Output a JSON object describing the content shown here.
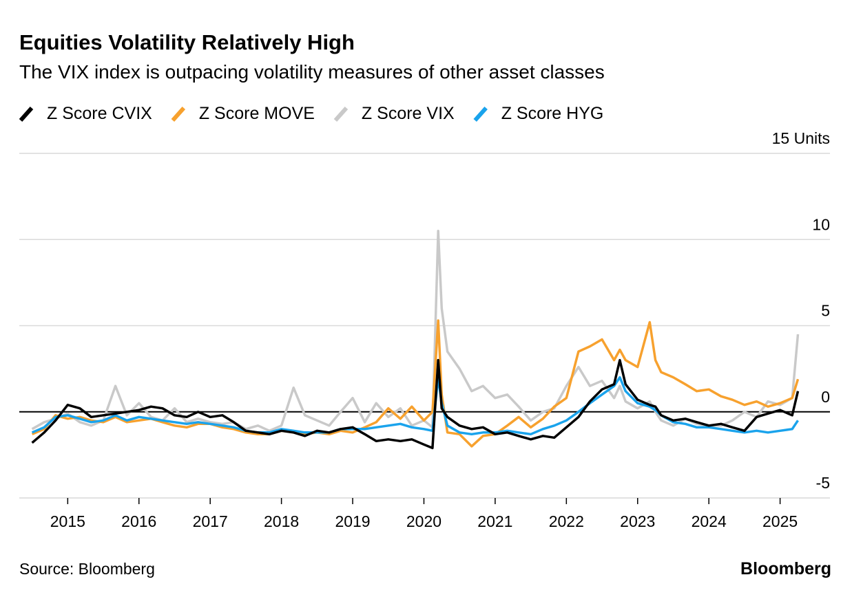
{
  "chart_data": {
    "type": "line",
    "title": "Equities Volatility Relatively High",
    "subtitle": "The VIX index is outpacing volatility measures of other asset classes",
    "source": "Source: Bloomberg",
    "brand": "Bloomberg",
    "x": [
      2014.5,
      2014.67,
      2014.83,
      2015.0,
      2015.17,
      2015.33,
      2015.5,
      2015.67,
      2015.83,
      2016.0,
      2016.17,
      2016.33,
      2016.5,
      2016.67,
      2016.83,
      2017.0,
      2017.17,
      2017.33,
      2017.5,
      2017.67,
      2017.83,
      2018.0,
      2018.17,
      2018.33,
      2018.5,
      2018.67,
      2018.83,
      2019.0,
      2019.17,
      2019.33,
      2019.5,
      2019.67,
      2019.83,
      2020.0,
      2020.12,
      2020.2,
      2020.25,
      2020.33,
      2020.5,
      2020.67,
      2020.83,
      2021.0,
      2021.17,
      2021.33,
      2021.5,
      2021.67,
      2021.83,
      2022.0,
      2022.17,
      2022.33,
      2022.5,
      2022.67,
      2022.75,
      2022.83,
      2023.0,
      2023.17,
      2023.25,
      2023.33,
      2023.5,
      2023.67,
      2023.83,
      2024.0,
      2024.17,
      2024.33,
      2024.5,
      2024.67,
      2024.83,
      2025.0,
      2025.17,
      2025.25
    ],
    "series": [
      {
        "name": "Z Score CVIX",
        "color": "#000000",
        "values": [
          -1.8,
          -1.2,
          -0.5,
          0.4,
          0.2,
          -0.3,
          -0.2,
          -0.1,
          0.0,
          0.1,
          0.3,
          0.2,
          -0.2,
          -0.3,
          0.0,
          -0.3,
          -0.2,
          -0.6,
          -1.1,
          -1.2,
          -1.3,
          -1.1,
          -1.2,
          -1.4,
          -1.1,
          -1.2,
          -1.0,
          -0.9,
          -1.3,
          -1.7,
          -1.6,
          -1.7,
          -1.6,
          -1.9,
          -2.1,
          3.0,
          0.2,
          -0.3,
          -0.8,
          -1.0,
          -0.9,
          -1.3,
          -1.2,
          -1.4,
          -1.6,
          -1.4,
          -1.5,
          -0.9,
          -0.3,
          0.6,
          1.3,
          1.6,
          3.0,
          1.6,
          0.7,
          0.4,
          0.3,
          -0.2,
          -0.5,
          -0.4,
          -0.6,
          -0.8,
          -0.7,
          -0.9,
          -1.1,
          -0.3,
          -0.1,
          0.1,
          -0.2,
          1.2
        ]
      },
      {
        "name": "Z Score MOVE",
        "color": "#f7a12e",
        "values": [
          -1.3,
          -1.0,
          -0.2,
          -0.4,
          -0.3,
          -0.5,
          -0.6,
          -0.3,
          -0.6,
          -0.5,
          -0.4,
          -0.6,
          -0.8,
          -0.9,
          -0.7,
          -0.7,
          -0.9,
          -1.0,
          -1.2,
          -1.3,
          -1.3,
          -1.1,
          -1.2,
          -1.3,
          -1.2,
          -1.3,
          -1.1,
          -1.2,
          -0.9,
          -0.6,
          0.2,
          -0.4,
          0.3,
          -0.5,
          0.0,
          5.3,
          1.0,
          -1.2,
          -1.3,
          -2.0,
          -1.4,
          -1.3,
          -0.8,
          -0.3,
          -0.9,
          -0.4,
          0.3,
          0.8,
          3.5,
          3.8,
          4.2,
          3.0,
          3.6,
          3.0,
          2.6,
          5.2,
          3.0,
          2.3,
          2.0,
          1.6,
          1.2,
          1.3,
          0.9,
          0.7,
          0.4,
          0.6,
          0.3,
          0.5,
          0.8,
          1.9
        ]
      },
      {
        "name": "Z Score VIX",
        "color": "#c9c9c9",
        "values": [
          -1.0,
          -0.6,
          -0.4,
          -0.1,
          -0.6,
          -0.8,
          -0.5,
          1.5,
          -0.2,
          0.5,
          -0.3,
          -0.5,
          0.2,
          -0.6,
          -0.4,
          -0.6,
          -0.7,
          -0.6,
          -1.0,
          -0.8,
          -1.1,
          -0.8,
          1.4,
          -0.2,
          -0.5,
          -0.8,
          0.0,
          0.8,
          -0.6,
          0.5,
          -0.3,
          0.2,
          -0.8,
          -0.5,
          -0.9,
          10.5,
          6.0,
          3.5,
          2.5,
          1.2,
          1.5,
          0.8,
          1.0,
          0.3,
          -0.5,
          0.0,
          0.2,
          1.5,
          2.6,
          1.5,
          1.8,
          0.8,
          1.5,
          0.6,
          0.2,
          0.6,
          0.0,
          -0.5,
          -0.8,
          -0.4,
          -0.7,
          -0.8,
          -0.8,
          -0.5,
          0.0,
          -0.3,
          0.6,
          0.4,
          0.8,
          4.5
        ]
      },
      {
        "name": "Z Score HYG",
        "color": "#1aa3ec",
        "values": [
          -1.2,
          -0.9,
          -0.3,
          -0.2,
          -0.4,
          -0.6,
          -0.5,
          -0.2,
          -0.5,
          -0.3,
          -0.4,
          -0.5,
          -0.6,
          -0.7,
          -0.6,
          -0.7,
          -0.8,
          -0.9,
          -1.1,
          -1.2,
          -1.2,
          -1.0,
          -1.1,
          -1.2,
          -1.2,
          -1.2,
          -1.0,
          -1.0,
          -1.0,
          -0.9,
          -0.8,
          -0.7,
          -0.9,
          -1.0,
          -1.1,
          2.0,
          0.5,
          -0.8,
          -1.2,
          -1.3,
          -1.2,
          -1.2,
          -1.1,
          -1.2,
          -1.3,
          -1.0,
          -0.8,
          -0.5,
          0.0,
          0.5,
          1.0,
          1.5,
          2.0,
          1.2,
          0.5,
          0.3,
          0.1,
          -0.2,
          -0.6,
          -0.7,
          -0.9,
          -0.9,
          -1.0,
          -1.1,
          -1.2,
          -1.1,
          -1.2,
          -1.1,
          -1.0,
          -0.5
        ]
      }
    ],
    "xlim": [
      2014.32,
      2025.7
    ],
    "xticks": [
      2015,
      2016,
      2017,
      2018,
      2019,
      2020,
      2021,
      2022,
      2023,
      2024,
      2025
    ],
    "ylim": [
      -5,
      15
    ],
    "yticks": [
      -5,
      0,
      5,
      10,
      {
        "value": 15,
        "label": "15 Units"
      }
    ],
    "grid": true
  }
}
